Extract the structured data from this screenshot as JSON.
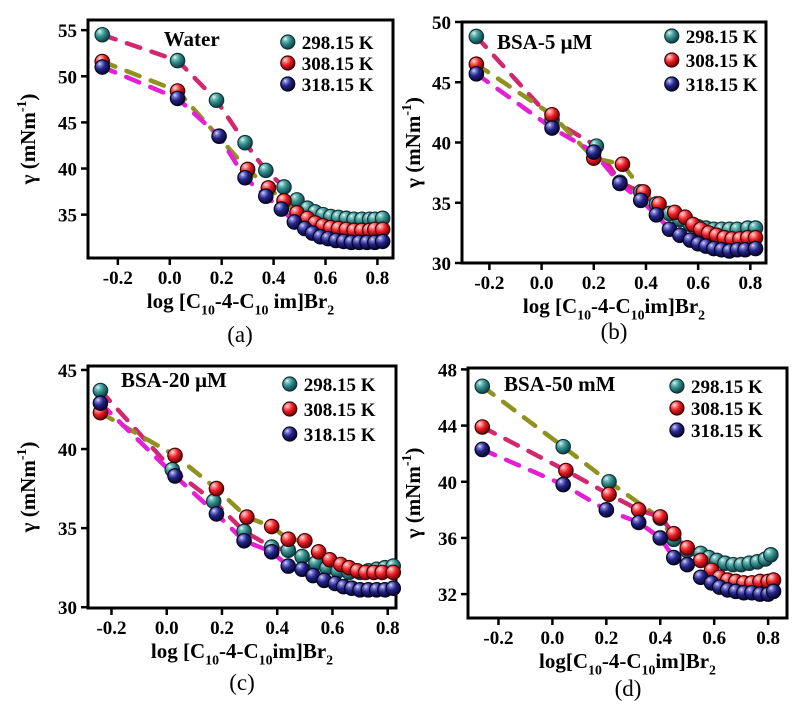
{
  "colors": {
    "teal": "#2e8b8a",
    "red": "#ee1c24",
    "navy": "#232388",
    "crimson_dash": "#d3286e",
    "olive_dash": "#8f921e",
    "magenta_dash": "#e41fd6",
    "axis": "#000000",
    "background": "#ffffff"
  },
  "legend_labels": [
    "298.15 K",
    "308.15 K",
    "318.15 K"
  ],
  "chart_data": [
    {
      "id": "a",
      "type": "scatter",
      "caption": "(a)",
      "title": "Water",
      "xlabel": "log [C_{10}-4-C_{10} im]Br_{2}",
      "ylabel": "γ (mNm^{-1})",
      "xlim": [
        -0.315,
        0.86
      ],
      "ylim": [
        30.3,
        56.1
      ],
      "xticks": [
        "-0.2",
        "0.0",
        "0.2",
        "0.4",
        "0.6",
        "0.8"
      ],
      "xtick_values": [
        -0.2,
        0.0,
        0.2,
        0.4,
        0.6,
        0.8
      ],
      "yticks": [
        35,
        40,
        45,
        50,
        55
      ],
      "series": [
        {
          "name": "298.15 K",
          "color": "teal",
          "trend": "crimson_dash",
          "trend_x_end": 0.51,
          "points": [
            [
              -0.26,
              54.5
            ],
            [
              0.03,
              51.7
            ],
            [
              0.18,
              47.4
            ],
            [
              0.29,
              42.8
            ],
            [
              0.37,
              39.8
            ],
            [
              0.44,
              38.0
            ],
            [
              0.49,
              36.6
            ],
            [
              0.53,
              35.7
            ],
            [
              0.56,
              35.3
            ],
            [
              0.59,
              35.0
            ],
            [
              0.62,
              34.8
            ],
            [
              0.65,
              34.7
            ],
            [
              0.68,
              34.6
            ],
            [
              0.71,
              34.5
            ],
            [
              0.74,
              34.5
            ],
            [
              0.77,
              34.5
            ],
            [
              0.79,
              34.5
            ],
            [
              0.82,
              34.6
            ]
          ]
        },
        {
          "name": "308.15 K",
          "color": "red",
          "trend": "olive_dash",
          "trend_x_end": 0.51,
          "points": [
            [
              -0.26,
              51.6
            ],
            [
              0.03,
              48.4
            ],
            [
              0.3,
              39.9
            ],
            [
              0.38,
              37.9
            ],
            [
              0.44,
              36.5
            ],
            [
              0.49,
              35.2
            ],
            [
              0.53,
              34.6
            ],
            [
              0.56,
              34.1
            ],
            [
              0.59,
              33.8
            ],
            [
              0.62,
              33.6
            ],
            [
              0.65,
              33.5
            ],
            [
              0.68,
              33.4
            ],
            [
              0.71,
              33.3
            ],
            [
              0.74,
              33.3
            ],
            [
              0.77,
              33.3
            ],
            [
              0.79,
              33.4
            ],
            [
              0.82,
              33.4
            ]
          ]
        },
        {
          "name": "318.15 K",
          "color": "navy",
          "trend": "magenta_dash",
          "trend_x_end": 0.5,
          "points": [
            [
              -0.26,
              51.0
            ],
            [
              0.03,
              47.6
            ],
            [
              0.19,
              43.5
            ],
            [
              0.29,
              39.0
            ],
            [
              0.37,
              37.0
            ],
            [
              0.43,
              35.6
            ],
            [
              0.48,
              34.2
            ],
            [
              0.52,
              33.5
            ],
            [
              0.55,
              33.0
            ],
            [
              0.58,
              32.6
            ],
            [
              0.61,
              32.4
            ],
            [
              0.64,
              32.2
            ],
            [
              0.67,
              32.1
            ],
            [
              0.7,
              32.0
            ],
            [
              0.73,
              32.0
            ],
            [
              0.76,
              32.0
            ],
            [
              0.79,
              32.0
            ],
            [
              0.82,
              32.1
            ]
          ]
        }
      ]
    },
    {
      "id": "b",
      "type": "scatter",
      "caption": "(b)",
      "title": "BSA-5 μM",
      "xlabel": "log [C_{10}-4-C_{10}im]Br_{2}",
      "ylabel": "γ (mNm^{-1})",
      "xlim": [
        -0.305,
        0.86
      ],
      "ylim": [
        30,
        50
      ],
      "xticks": [
        "-0.2",
        "0.0",
        "0.2",
        "0.4",
        "0.6",
        "0.8"
      ],
      "xtick_values": [
        -0.2,
        0.0,
        0.2,
        0.4,
        0.6,
        0.8
      ],
      "yticks": [
        30,
        35,
        40,
        45,
        50
      ],
      "series": [
        {
          "name": "298.15 K",
          "color": "teal",
          "trend": "crimson_dash",
          "trend_x_end": 0.51,
          "points": [
            [
              -0.25,
              48.8
            ],
            [
              0.04,
              41.9
            ],
            [
              0.21,
              39.7
            ],
            [
              0.3,
              36.7
            ],
            [
              0.38,
              35.9
            ],
            [
              0.44,
              34.9
            ],
            [
              0.49,
              34.1
            ],
            [
              0.53,
              33.6
            ],
            [
              0.57,
              33.2
            ],
            [
              0.6,
              33.0
            ],
            [
              0.63,
              32.9
            ],
            [
              0.66,
              32.8
            ],
            [
              0.69,
              32.8
            ],
            [
              0.72,
              32.8
            ],
            [
              0.75,
              32.8
            ],
            [
              0.79,
              32.9
            ],
            [
              0.82,
              32.9
            ]
          ]
        },
        {
          "name": "308.15 K",
          "color": "red",
          "trend": "olive_dash",
          "trend_x_end": 0.51,
          "points": [
            [
              -0.25,
              46.5
            ],
            [
              0.04,
              42.3
            ],
            [
              0.2,
              38.7
            ],
            [
              0.31,
              38.2
            ],
            [
              0.39,
              35.9
            ],
            [
              0.45,
              34.9
            ],
            [
              0.51,
              34.2
            ],
            [
              0.55,
              33.8
            ],
            [
              0.58,
              33.2
            ],
            [
              0.61,
              32.8
            ],
            [
              0.64,
              32.5
            ],
            [
              0.67,
              32.3
            ],
            [
              0.7,
              32.1
            ],
            [
              0.73,
              32.0
            ],
            [
              0.76,
              32.0
            ],
            [
              0.79,
              32.1
            ],
            [
              0.82,
              32.1
            ]
          ]
        },
        {
          "name": "318.15 K",
          "color": "navy",
          "trend": "magenta_dash",
          "trend_x_end": 0.5,
          "points": [
            [
              -0.25,
              45.7
            ],
            [
              0.04,
              41.2
            ],
            [
              0.2,
              39.2
            ],
            [
              0.3,
              36.6
            ],
            [
              0.38,
              35.2
            ],
            [
              0.44,
              34.0
            ],
            [
              0.49,
              32.8
            ],
            [
              0.53,
              32.3
            ],
            [
              0.57,
              31.9
            ],
            [
              0.6,
              31.6
            ],
            [
              0.63,
              31.4
            ],
            [
              0.66,
              31.2
            ],
            [
              0.69,
              31.1
            ],
            [
              0.72,
              31.0
            ],
            [
              0.75,
              31.1
            ],
            [
              0.78,
              31.1
            ],
            [
              0.82,
              31.2
            ]
          ]
        }
      ]
    },
    {
      "id": "c",
      "type": "scatter",
      "caption": "(c)",
      "title": "BSA-20 μM",
      "xlabel": "log [C_{10}-4-C_{10}im]Br_{2}",
      "ylabel": "γ (mNm^{-1})",
      "xlim": [
        -0.285,
        0.83
      ],
      "ylim": [
        29.95,
        45.25
      ],
      "xticks": [
        "-0.2",
        "0.0",
        "0.2",
        "0.4",
        "0.6",
        "0.8"
      ],
      "xtick_values": [
        -0.2,
        0.0,
        0.2,
        0.4,
        0.6,
        0.8
      ],
      "yticks": [
        30,
        35,
        40,
        45
      ],
      "series": [
        {
          "name": "298.15 K",
          "color": "teal",
          "trend": "crimson_dash",
          "trend_x_end": 0.5,
          "points": [
            [
              -0.24,
              43.7
            ],
            [
              0.02,
              38.7
            ],
            [
              0.17,
              36.7
            ],
            [
              0.28,
              34.8
            ],
            [
              0.38,
              33.8
            ],
            [
              0.44,
              33.6
            ],
            [
              0.49,
              33.2
            ],
            [
              0.54,
              32.8
            ],
            [
              0.58,
              32.5
            ],
            [
              0.62,
              32.3
            ],
            [
              0.66,
              32.2
            ],
            [
              0.7,
              32.2
            ],
            [
              0.73,
              32.3
            ],
            [
              0.76,
              32.4
            ],
            [
              0.79,
              32.5
            ],
            [
              0.82,
              32.6
            ]
          ]
        },
        {
          "name": "308.15 K",
          "color": "red",
          "trend": "olive_dash",
          "trend_x_end": 0.51,
          "points": [
            [
              -0.24,
              42.3
            ],
            [
              0.03,
              39.6
            ],
            [
              0.18,
              37.5
            ],
            [
              0.29,
              35.7
            ],
            [
              0.38,
              35.1
            ],
            [
              0.44,
              34.3
            ],
            [
              0.5,
              34.2
            ],
            [
              0.55,
              33.5
            ],
            [
              0.59,
              33.0
            ],
            [
              0.63,
              32.7
            ],
            [
              0.66,
              32.5
            ],
            [
              0.69,
              32.3
            ],
            [
              0.72,
              32.2
            ],
            [
              0.75,
              32.2
            ],
            [
              0.78,
              32.2
            ],
            [
              0.82,
              32.2
            ]
          ]
        },
        {
          "name": "318.15 K",
          "color": "navy",
          "trend": "magenta_dash",
          "trend_x_end": 0.5,
          "points": [
            [
              -0.24,
              42.9
            ],
            [
              0.03,
              38.3
            ],
            [
              0.18,
              35.9
            ],
            [
              0.28,
              34.2
            ],
            [
              0.38,
              33.5
            ],
            [
              0.44,
              32.6
            ],
            [
              0.49,
              32.4
            ],
            [
              0.53,
              32.0
            ],
            [
              0.57,
              31.7
            ],
            [
              0.61,
              31.5
            ],
            [
              0.64,
              31.3
            ],
            [
              0.67,
              31.2
            ],
            [
              0.7,
              31.1
            ],
            [
              0.73,
              31.1
            ],
            [
              0.76,
              31.1
            ],
            [
              0.79,
              31.1
            ],
            [
              0.82,
              31.2
            ]
          ]
        }
      ]
    },
    {
      "id": "d",
      "type": "scatter",
      "caption": "(d)",
      "title": "BSA-50 mM",
      "xlabel": "log[C_{10}-4-C_{10}im]Br_{2}",
      "ylabel": "γ (mNm^{-1})",
      "xlim": [
        -0.313,
        0.87
      ],
      "ylim": [
        30.3,
        48.1
      ],
      "xticks": [
        "-0.2",
        "0.0",
        "0.2",
        "0.4",
        "0.6",
        "0.8"
      ],
      "xtick_values": [
        -0.2,
        0.0,
        0.2,
        0.4,
        0.6,
        0.8
      ],
      "yticks": [
        32,
        36,
        40,
        44,
        48
      ],
      "series": [
        {
          "name": "298.15 K",
          "color": "teal",
          "trend": "olive_dash",
          "trend_x_end": 0.46,
          "points": [
            [
              -0.26,
              46.8
            ],
            [
              0.04,
              42.5
            ],
            [
              0.21,
              40.0
            ],
            [
              0.4,
              37.4
            ],
            [
              0.45,
              35.9
            ],
            [
              0.5,
              35.1
            ],
            [
              0.55,
              34.9
            ],
            [
              0.58,
              34.6
            ],
            [
              0.61,
              34.4
            ],
            [
              0.64,
              34.2
            ],
            [
              0.67,
              34.1
            ],
            [
              0.7,
              34.1
            ],
            [
              0.73,
              34.2
            ],
            [
              0.76,
              34.3
            ],
            [
              0.79,
              34.5
            ],
            [
              0.81,
              34.8
            ]
          ]
        },
        {
          "name": "308.15 K",
          "color": "red",
          "trend": "crimson_dash",
          "trend_x_end": 0.51,
          "points": [
            [
              -0.26,
              43.9
            ],
            [
              0.05,
              40.8
            ],
            [
              0.21,
              39.1
            ],
            [
              0.32,
              38.0
            ],
            [
              0.4,
              37.5
            ],
            [
              0.45,
              36.3
            ],
            [
              0.5,
              35.3
            ],
            [
              0.55,
              34.4
            ],
            [
              0.59,
              33.7
            ],
            [
              0.62,
              33.2
            ],
            [
              0.65,
              33.0
            ],
            [
              0.68,
              32.9
            ],
            [
              0.71,
              32.8
            ],
            [
              0.74,
              32.8
            ],
            [
              0.77,
              32.9
            ],
            [
              0.8,
              32.9
            ],
            [
              0.82,
              33.0
            ]
          ]
        },
        {
          "name": "318.15 K",
          "color": "navy",
          "trend": "magenta_dash",
          "trend_x_end": 0.46,
          "points": [
            [
              -0.26,
              42.3
            ],
            [
              0.04,
              39.8
            ],
            [
              0.2,
              38.0
            ],
            [
              0.32,
              37.1
            ],
            [
              0.4,
              36.0
            ],
            [
              0.45,
              34.6
            ],
            [
              0.5,
              34.1
            ],
            [
              0.55,
              33.2
            ],
            [
              0.59,
              32.8
            ],
            [
              0.62,
              32.5
            ],
            [
              0.65,
              32.3
            ],
            [
              0.68,
              32.2
            ],
            [
              0.71,
              32.1
            ],
            [
              0.74,
              32.1
            ],
            [
              0.77,
              32.0
            ],
            [
              0.8,
              32.0
            ],
            [
              0.82,
              32.2
            ]
          ]
        }
      ]
    }
  ]
}
